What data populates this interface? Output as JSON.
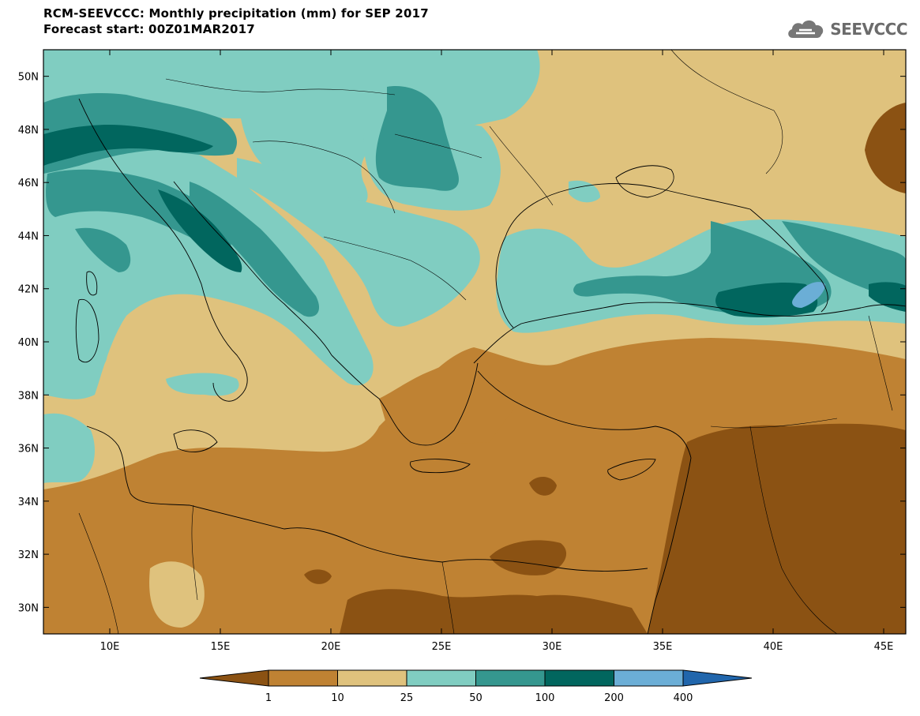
{
  "header": {
    "title_line1": "RCM-SEEVCCC: Monthly precipitation (mm) for SEP 2017",
    "title_line2": "Forecast start: 00Z01MAR2017"
  },
  "logo": {
    "text": "SEEVCCC",
    "icon": "cloud-icon"
  },
  "axes": {
    "lat_labels": [
      "50N",
      "48N",
      "46N",
      "44N",
      "42N",
      "40N",
      "38N",
      "36N",
      "34N",
      "32N",
      "30N"
    ],
    "lat_values": [
      50,
      48,
      46,
      44,
      42,
      40,
      38,
      36,
      34,
      32,
      30
    ],
    "lon_labels": [
      "10E",
      "15E",
      "20E",
      "25E",
      "30E",
      "35E",
      "40E",
      "45E"
    ],
    "lon_values": [
      10,
      15,
      20,
      25,
      30,
      35,
      40,
      45
    ],
    "lon_range": [
      7,
      46
    ],
    "lat_range": [
      29,
      51
    ]
  },
  "colorbar": {
    "bounds": [
      "1",
      "10",
      "25",
      "50",
      "100",
      "200",
      "400"
    ],
    "colors": [
      "#8b5213",
      "#bf8233",
      "#dfc27d",
      "#80cdc1",
      "#35978f",
      "#01665e",
      "#6baed6",
      "#2166ac"
    ]
  },
  "map_colors": {
    "lt1": "#8b5213",
    "r1_10": "#bf8233",
    "r10_25": "#dfc27d",
    "r25_50": "#80cdc1",
    "r50_100": "#35978f",
    "r100_200": "#01665e",
    "r200_400": "#6baed6"
  }
}
